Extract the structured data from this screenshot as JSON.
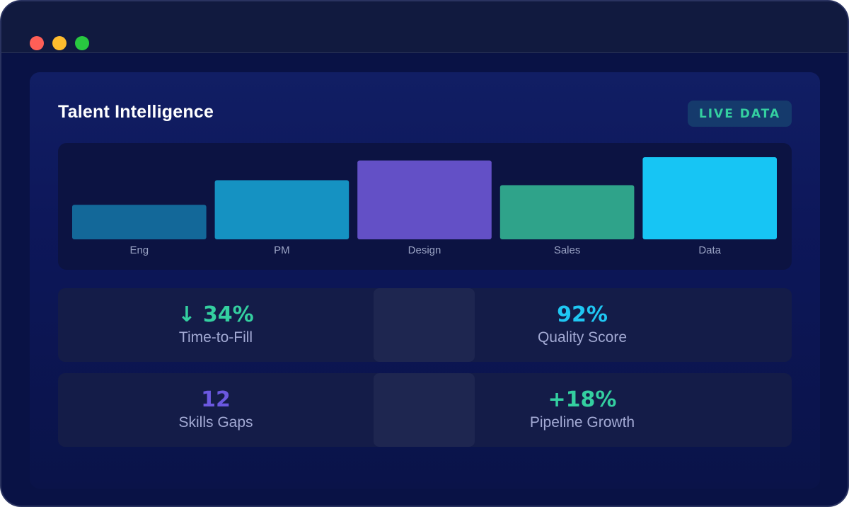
{
  "window": {
    "controls": [
      "close",
      "minimize",
      "maximize"
    ]
  },
  "card": {
    "title": "Talent Intelligence",
    "badge": "LIVE DATA"
  },
  "chart_data": {
    "type": "bar",
    "title": "",
    "xlabel": "",
    "ylabel": "",
    "categories": [
      "Eng",
      "PM",
      "Design",
      "Sales",
      "Data"
    ],
    "values": [
      42,
      72,
      96,
      66,
      100
    ],
    "colors": [
      "#136899",
      "#1592c2",
      "#6350c6",
      "#2fa38a",
      "#17c5f4"
    ],
    "ylim": [
      0,
      100
    ],
    "grid": false
  },
  "stats": [
    {
      "value": "↓ 34%",
      "label": "Time-to-Fill",
      "color": "#34cfa0"
    },
    {
      "value": "92%",
      "label": "Quality Score",
      "color": "#1fc7f3"
    },
    {
      "value": "12",
      "label": "Skills Gaps",
      "color": "#6b58e0"
    },
    {
      "value": "+18%",
      "label": "Pipeline Growth",
      "color": "#34cfa0"
    }
  ]
}
